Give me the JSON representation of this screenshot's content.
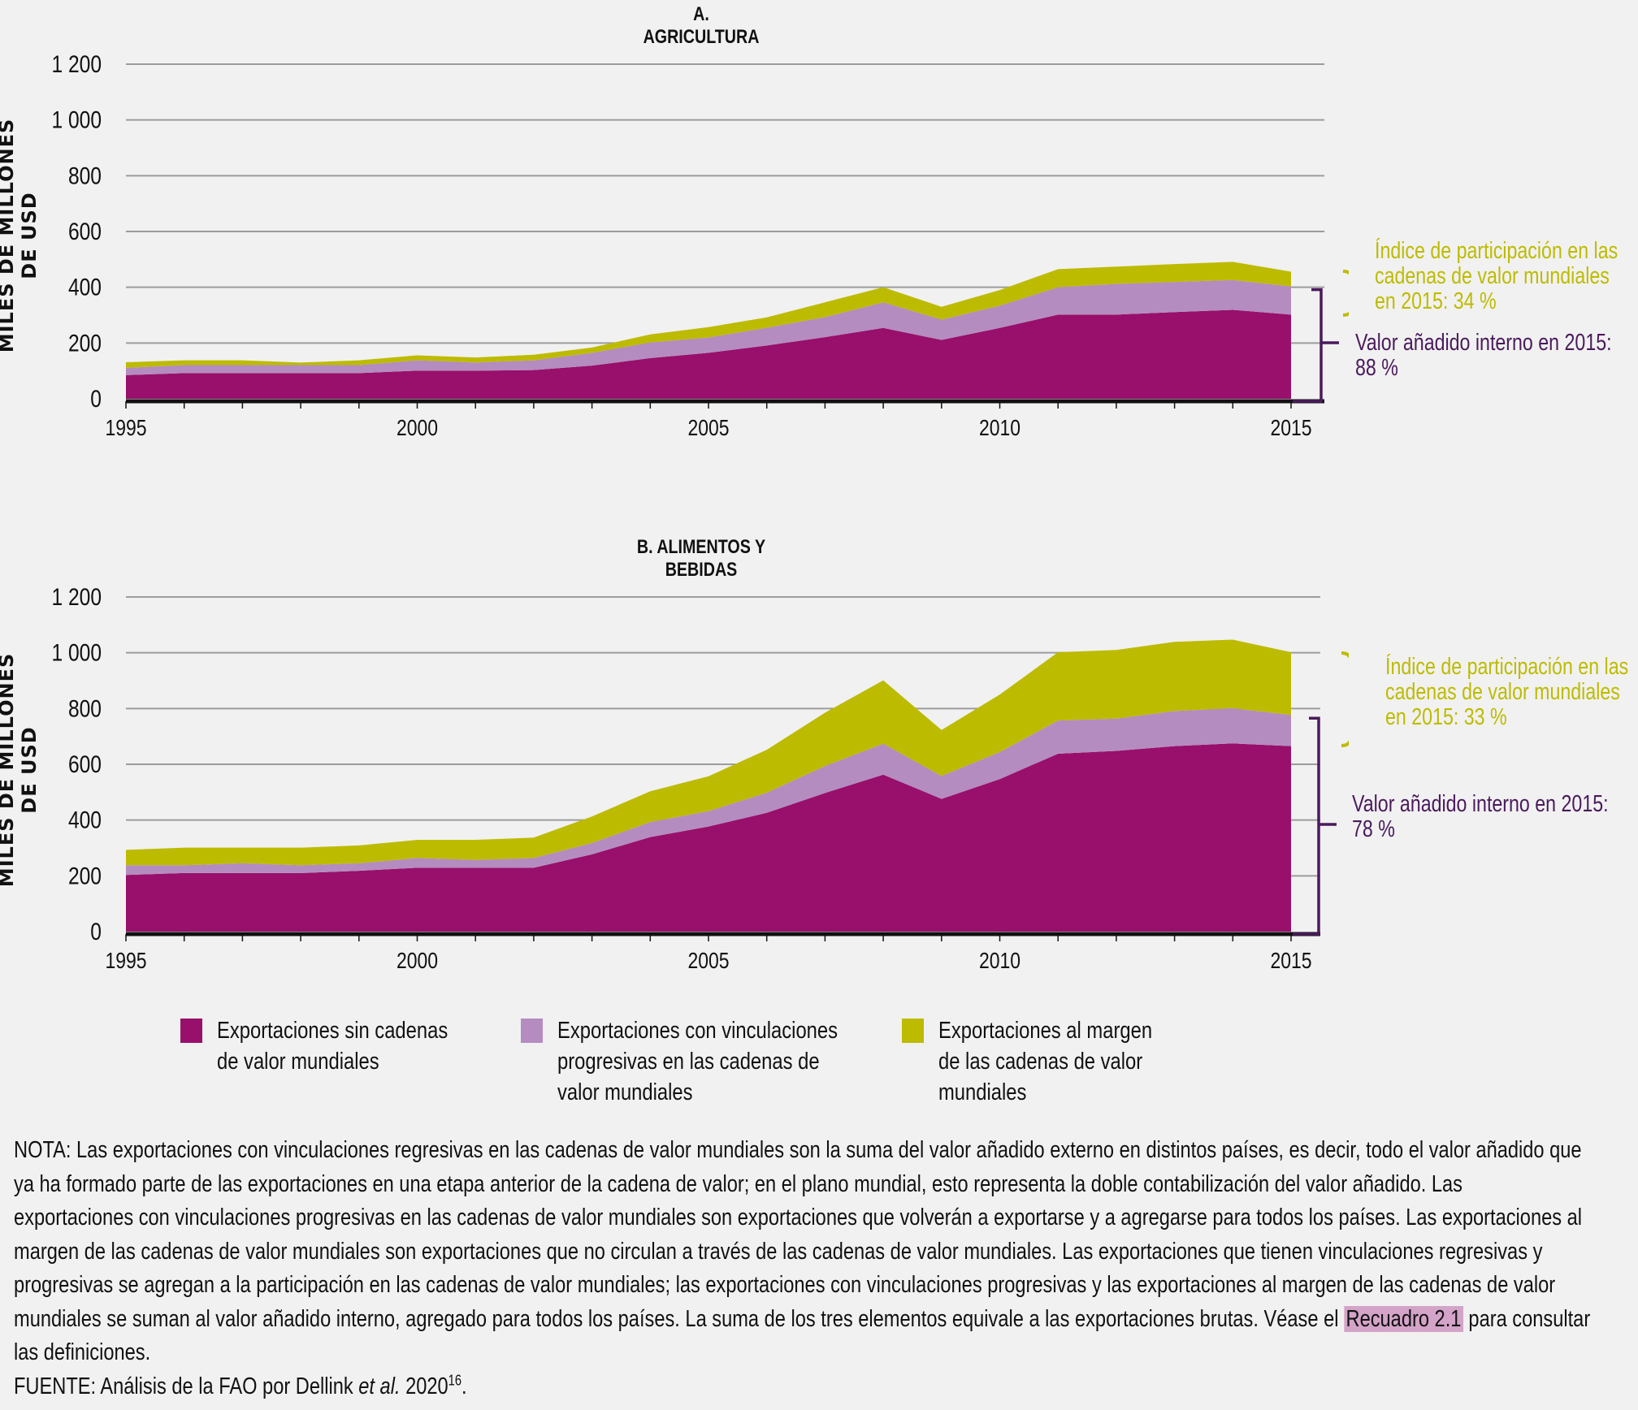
{
  "chart_data": [
    {
      "type": "area",
      "stacked": true,
      "title": "A. AGRICULTURA",
      "ylabel": "MILES DE MILLONES DE USD",
      "xlabel": "",
      "x": [
        1995,
        1996,
        1997,
        1998,
        1999,
        2000,
        2001,
        2002,
        2003,
        2004,
        2005,
        2006,
        2007,
        2008,
        2009,
        2010,
        2011,
        2012,
        2013,
        2014,
        2015
      ],
      "x_ticks": [
        "1995",
        "2000",
        "2005",
        "2010",
        "2015"
      ],
      "y_ticks": [
        "0",
        "200",
        "400",
        "600",
        "800",
        "1 000",
        "1 200"
      ],
      "ylim": [
        0,
        1200
      ],
      "grid": true,
      "series": [
        {
          "name": "Exportaciones sin cadenas de valor mundiales",
          "color": "#98106b",
          "values": [
            85,
            92,
            92,
            92,
            92,
            101,
            101,
            103,
            119,
            146,
            165,
            191,
            221,
            254,
            211,
            254,
            302,
            302,
            311,
            319,
            302
          ]
        },
        {
          "name": "Exportaciones con vinculaciones progresivas en las cadenas de valor mundiales",
          "color": "#b48cc0",
          "values": [
            26,
            29,
            29,
            29,
            29,
            37,
            29,
            35,
            46,
            56,
            55,
            64,
            72,
            92,
            73,
            80,
            98,
            110,
            108,
            107,
            101
          ]
        },
        {
          "name": "Exportaciones al margen de las cadenas de valor mundiales",
          "color": "#bdbb00",
          "values": [
            20,
            17,
            17,
            9,
            17,
            18,
            18,
            20,
            19,
            29,
            37,
            37,
            53,
            54,
            46,
            56,
            65,
            62,
            64,
            65,
            53
          ]
        }
      ],
      "annotations": [
        {
          "text": "Índice de participación en las cadenas de valor mundiales en 2015: 34 %",
          "color": "#bdbb00"
        },
        {
          "text": "Valor añadido interno en 2015: 88 %",
          "color": "#4a1a5c"
        }
      ]
    },
    {
      "type": "area",
      "stacked": true,
      "title": "B. ALIMENTOS Y BEBIDAS",
      "ylabel": "MILES DE MILLONES DE USD",
      "xlabel": "",
      "x": [
        1995,
        1996,
        1997,
        1998,
        1999,
        2000,
        2001,
        2002,
        2003,
        2004,
        2005,
        2006,
        2007,
        2008,
        2009,
        2010,
        2011,
        2012,
        2013,
        2014,
        2015
      ],
      "x_ticks": [
        "1995",
        "2000",
        "2005",
        "2010",
        "2015"
      ],
      "y_ticks": [
        "0",
        "200",
        "400",
        "600",
        "800",
        "1 000",
        "1 200"
      ],
      "ylim": [
        0,
        1200
      ],
      "grid": true,
      "series": [
        {
          "name": "Exportaciones sin cadenas de valor mundiales",
          "color": "#98106b",
          "values": [
            203,
            210,
            210,
            210,
            218,
            229,
            229,
            229,
            277,
            339,
            377,
            426,
            497,
            563,
            476,
            547,
            638,
            648,
            665,
            675,
            665
          ]
        },
        {
          "name": "Exportaciones con vinculaciones progresivas en las cadenas de valor mundiales",
          "color": "#b48cc0",
          "values": [
            35,
            28,
            35,
            28,
            27,
            35,
            28,
            35,
            41,
            54,
            55,
            72,
            97,
            111,
            82,
            97,
            119,
            116,
            126,
            126,
            112
          ]
        },
        {
          "name": "Exportaciones al margen de las cadenas de valor mundiales",
          "color": "#bdbb00",
          "values": [
            55,
            63,
            56,
            63,
            64,
            65,
            72,
            73,
            95,
            110,
            125,
            154,
            191,
            227,
            165,
            206,
            245,
            246,
            248,
            246,
            225
          ]
        }
      ],
      "annotations": [
        {
          "text": "Índice de participación en las cadenas de valor mundiales en 2015: 33 %",
          "color": "#bdbb00"
        },
        {
          "text": "Valor añadido interno en 2015: 78 %",
          "color": "#4a1a5c"
        }
      ]
    }
  ],
  "charts": {
    "a": {
      "title": "A. AGRICULTURA",
      "ylabel": "MILES DE MILLONES DE USD",
      "ann_gvc": [
        "Índice de participación en las",
        "cadenas de valor mundiales",
        "en 2015: 34 %"
      ],
      "ann_dva": [
        "Valor añadido interno en 2015:",
        "88 %"
      ]
    },
    "b": {
      "title": "B. ALIMENTOS Y BEBIDAS",
      "ylabel": "MILES DE MILLONES DE USD",
      "ann_gvc": [
        "Índice de participación en las",
        "cadenas de valor mundiales",
        "en 2015:  33 %"
      ],
      "ann_dva": [
        "Valor añadido interno en 2015:",
        "78 %"
      ]
    }
  },
  "legend": [
    {
      "lines": [
        "Exportaciones sin cadenas",
        "de valor mundiales"
      ],
      "color": "#98106b"
    },
    {
      "lines": [
        "Exportaciones con vinculaciones",
        "progresivas en las cadenas de",
        "valor mundiales"
      ],
      "color": "#b48cc0"
    },
    {
      "lines": [
        "Exportaciones al margen",
        "de las cadenas de valor",
        "mundiales"
      ],
      "color": "#bdbb00"
    }
  ],
  "note": {
    "lines": [
      "NOTA: Las exportaciones con vinculaciones regresivas en las cadenas de valor mundiales son la suma del valor añadido externo en distintos países, es decir, todo el valor añadido que",
      "ya ha formado parte de las exportaciones en una etapa anterior de la cadena de valor; en el plano mundial, esto representa la doble contabilización del valor añadido. Las",
      "exportaciones con vinculaciones progresivas en las cadenas de valor mundiales son exportaciones que volverán a exportarse y a agregarse para todos los países. Las exportaciones al",
      "margen de las cadenas de valor mundiales son exportaciones que no circulan a través de las cadenas de valor mundiales. Las exportaciones que tienen vinculaciones regresivas y",
      "progresivas se agregan a la participación en las cadenas de valor mundiales; las exportaciones con vinculaciones progresivas y las exportaciones al margen de las cadenas de valor"
    ],
    "line6_before": "mundiales se suman al valor añadido interno, agregado para todos los países. La suma de los tres elementos equivale a las exportaciones brutas. Véase el ",
    "link_text": "Recuadro 2.1",
    "line6_after": " para consultar",
    "line7": "las definiciones.",
    "source_prefix": "FUENTE: Análisis de la FAO por Dellink ",
    "source_italic": "et al.",
    "source_year": " 2020",
    "source_sup": "16",
    "source_end": "."
  }
}
